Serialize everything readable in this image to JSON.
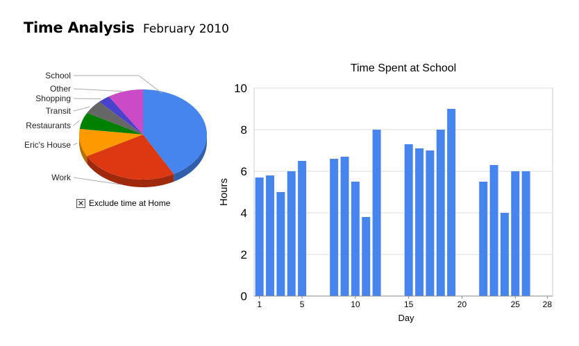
{
  "header": {
    "title": "Time Analysis",
    "subtitle": "February 2010"
  },
  "exclude_toggle": {
    "label": "Exclude time at Home",
    "checked": true,
    "mark": "✕"
  },
  "chart_data": [
    {
      "type": "pie",
      "style": "3d",
      "legend_position": "left",
      "slices": [
        {
          "label": "School",
          "value": 42,
          "color": "#4684ee"
        },
        {
          "label": "Work",
          "value": 25,
          "color": "#dc3912"
        },
        {
          "label": "Eric's House",
          "value": 10,
          "color": "#ff9900"
        },
        {
          "label": "Restaurants",
          "value": 6,
          "color": "#008000"
        },
        {
          "label": "Transit",
          "value": 5,
          "color": "#666666"
        },
        {
          "label": "Shopping",
          "value": 3,
          "color": "#4942cc"
        },
        {
          "label": "Other",
          "value": 9,
          "color": "#cb4ac5"
        }
      ]
    },
    {
      "type": "bar",
      "title": "Time Spent at School",
      "xlabel": "Day",
      "ylabel": "Hours",
      "ylim": [
        0,
        10
      ],
      "yticks": [
        0,
        2,
        4,
        6,
        8,
        10
      ],
      "xlim": [
        0.5,
        28.5
      ],
      "xticks": [
        1,
        5,
        10,
        15,
        20,
        25,
        28
      ],
      "grid": true,
      "bar_color": "#4684ee",
      "points": [
        {
          "x": 1,
          "y": 5.7
        },
        {
          "x": 2,
          "y": 5.8
        },
        {
          "x": 3,
          "y": 5.0
        },
        {
          "x": 4,
          "y": 6.0
        },
        {
          "x": 5,
          "y": 6.5
        },
        {
          "x": 8,
          "y": 6.6
        },
        {
          "x": 9,
          "y": 6.7
        },
        {
          "x": 10,
          "y": 5.5
        },
        {
          "x": 11,
          "y": 3.8
        },
        {
          "x": 12,
          "y": 8.0
        },
        {
          "x": 15,
          "y": 7.3
        },
        {
          "x": 16,
          "y": 7.1
        },
        {
          "x": 17,
          "y": 7.0
        },
        {
          "x": 18,
          "y": 8.0
        },
        {
          "x": 19,
          "y": 9.0
        },
        {
          "x": 22,
          "y": 5.5
        },
        {
          "x": 23,
          "y": 6.3
        },
        {
          "x": 24,
          "y": 4.0
        },
        {
          "x": 25,
          "y": 6.0
        },
        {
          "x": 26,
          "y": 6.0
        }
      ]
    }
  ]
}
